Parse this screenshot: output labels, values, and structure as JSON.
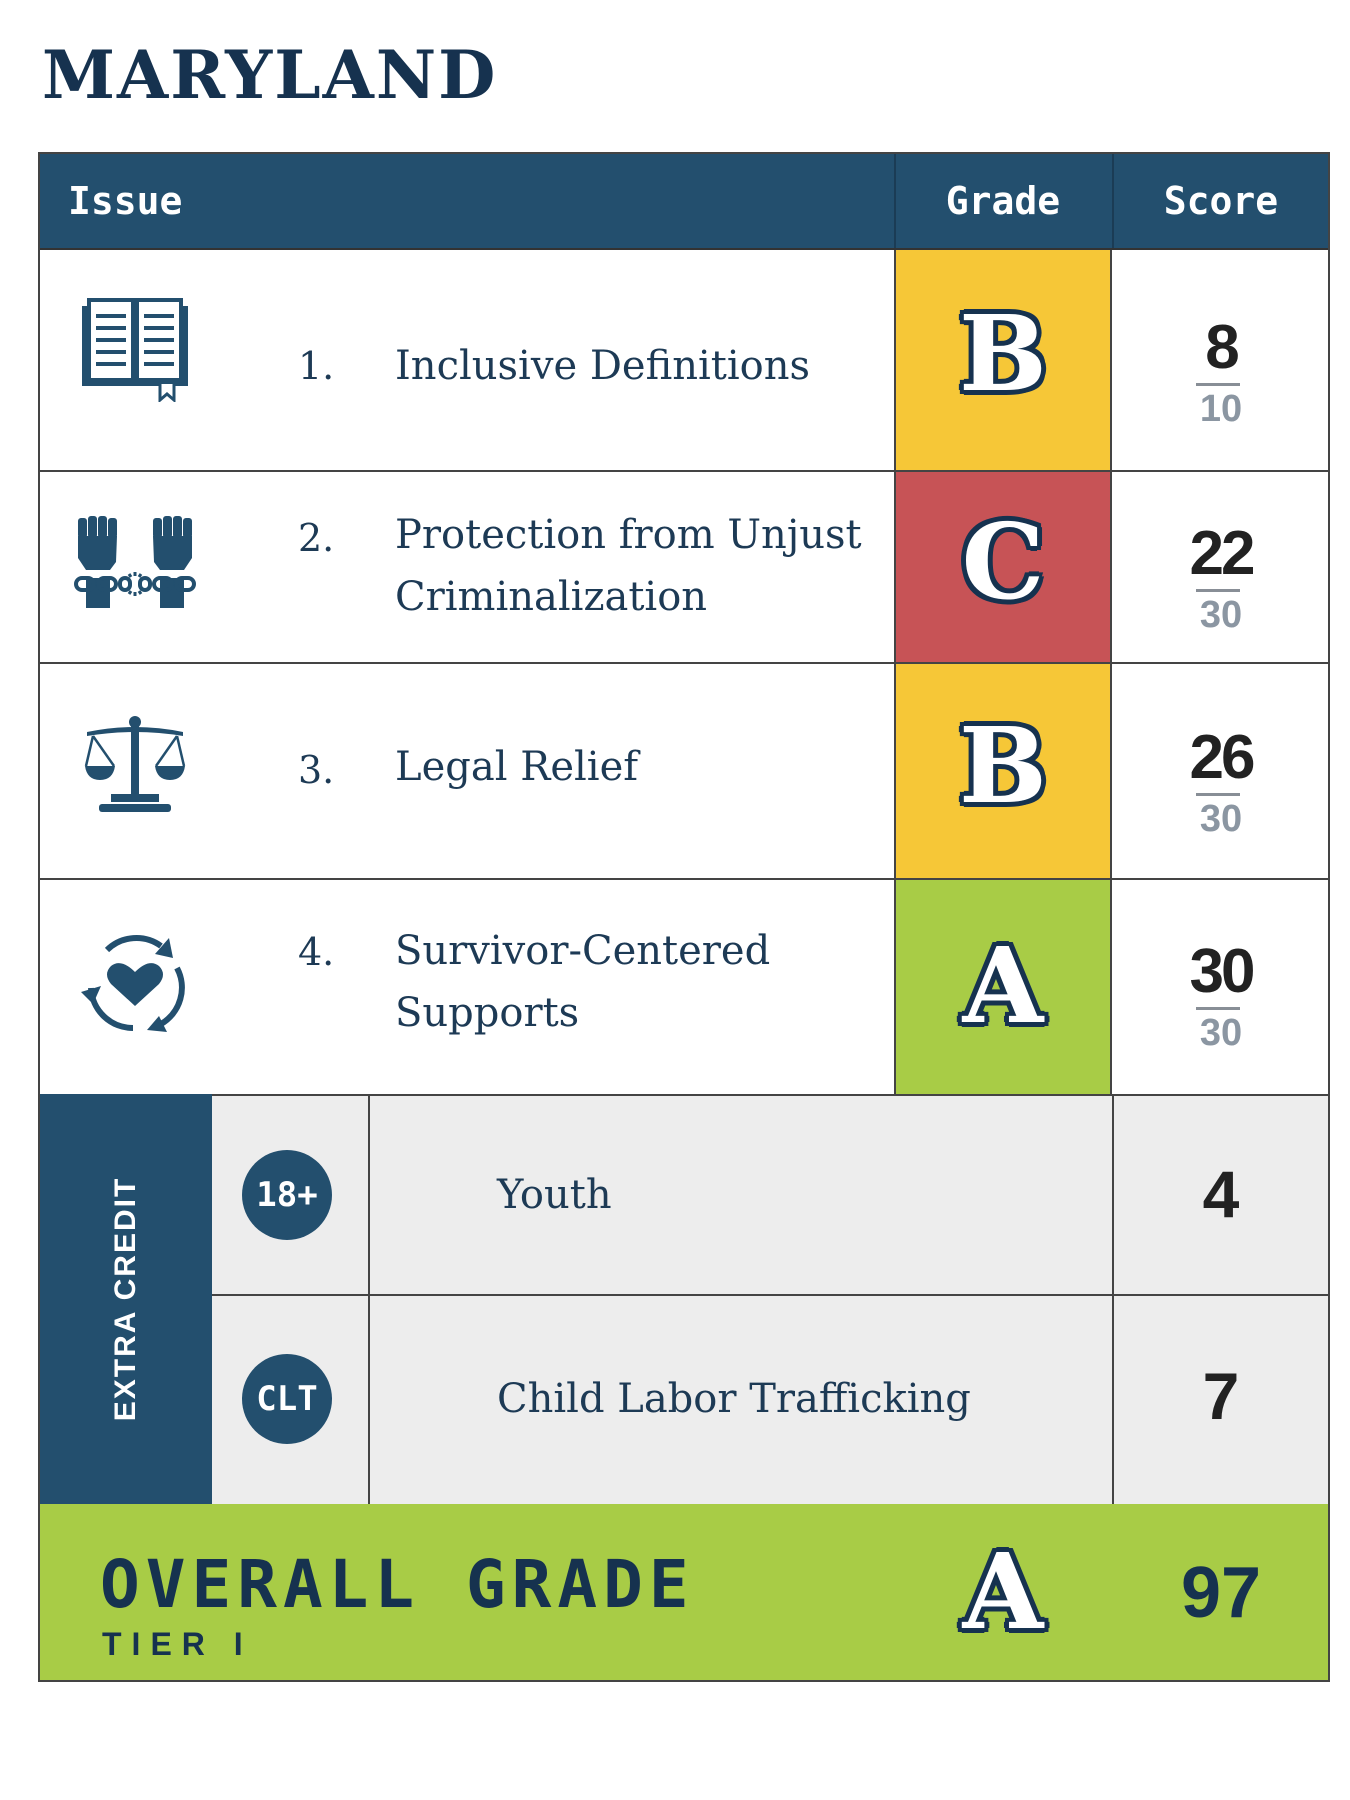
{
  "title": "MARYLAND",
  "colors": {
    "navy": "#234f6e",
    "grade_b": "#f6c737",
    "grade_c": "#c75356",
    "grade_a": "#a8cc46",
    "extra_bg": "#ededed"
  },
  "header": {
    "issue": "Issue",
    "grade": "Grade",
    "score": "Score"
  },
  "rows": [
    {
      "num": "1.",
      "label_line1": "Inclusive Definitions",
      "label_line2": "",
      "grade": "B",
      "score": "8",
      "max": "10",
      "icon": "open-book-icon"
    },
    {
      "num": "2.",
      "label_line1": "Protection from Unjust",
      "label_line2": "Criminalization",
      "grade": "C",
      "score": "22",
      "max": "30",
      "icon": "raised-fists-broken-chain-icon"
    },
    {
      "num": "3.",
      "label_line1": "Legal Relief",
      "label_line2": "",
      "grade": "B",
      "score": "26",
      "max": "30",
      "icon": "scales-of-justice-icon"
    },
    {
      "num": "4.",
      "label_line1": "Survivor-Centered",
      "label_line2": "Supports",
      "grade": "A",
      "score": "30",
      "max": "30",
      "icon": "heart-cycle-icon"
    }
  ],
  "extra_credit": {
    "label": "EXTRA CREDIT",
    "items": [
      {
        "badge": "18+",
        "label": "Youth",
        "score": "4"
      },
      {
        "badge": "CLT",
        "label": "Child Labor Trafficking",
        "score": "7"
      }
    ]
  },
  "overall": {
    "label": "OVERALL GRADE",
    "tier": "TIER I",
    "grade": "A",
    "score": "97"
  }
}
